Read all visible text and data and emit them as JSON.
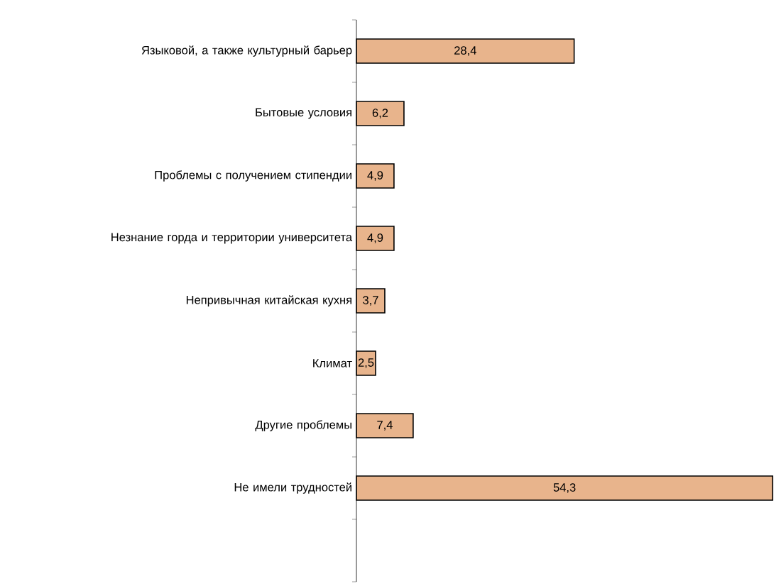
{
  "chart_data": {
    "type": "bar",
    "orientation": "horizontal",
    "categories": [
      "Языковой, а также культурный барьер",
      "Бытовые условия",
      "Проблемы с получением стипендии",
      "Незнание  горда и территории университета",
      "Непривычная китайская кухня",
      "Климат",
      "Другие проблемы",
      "Не имели трудностей",
      null
    ],
    "values": [
      28.4,
      6.2,
      4.9,
      4.9,
      3.7,
      2.5,
      7.4,
      54.3,
      null
    ],
    "value_labels": [
      "28,4",
      "6,2",
      "4,9",
      "4,9",
      "3,7",
      "2,5",
      "7,4",
      "54,3",
      null
    ],
    "color": "#e8b48c"
  }
}
